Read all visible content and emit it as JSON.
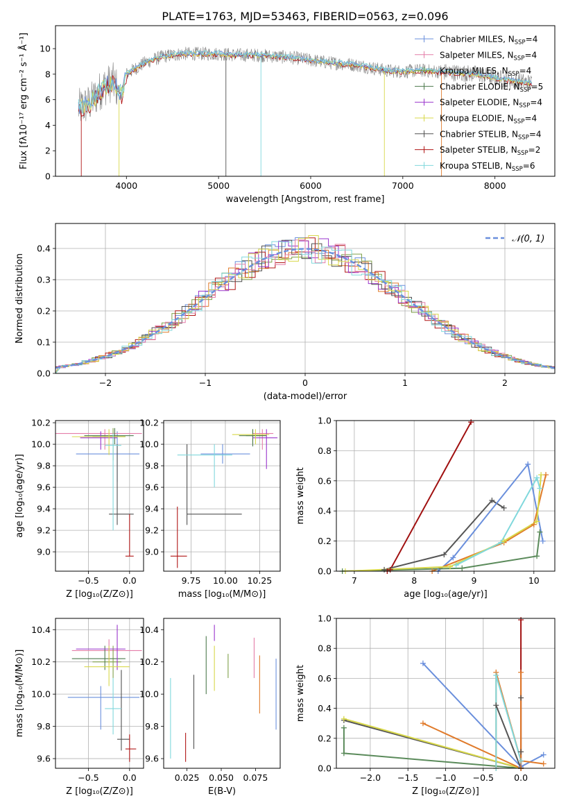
{
  "figure_title": "PLATE=1763, MJD=53463, FIBERID=0563, z=0.096",
  "colors": {
    "chabrier_miles": "#6a8fdc",
    "salpeter_miles": "#e47da8",
    "kroupa_miles": "#7fa04a",
    "chabrier_elodie": "#4e7a4e",
    "salpeter_elodie": "#9933cc",
    "kroupa_elodie": "#d8d84a",
    "chabrier_stelib": "#505050",
    "salpeter_stelib": "#b01515",
    "kroupa_stelib": "#80d8dc",
    "mass_line_blue": "#6a8fdc",
    "mass_line_orange": "#e07a2a",
    "mass_line_green": "#5a8a5a",
    "mass_line_red": "#a01010",
    "mass_line_gray": "#555555",
    "mass_line_cyan": "#80d8dc",
    "mass_line_yellow": "#d8d84a",
    "gauss": "#6a8fdc",
    "grid": "#b0b0b0"
  },
  "chart_data": [
    {
      "type": "line",
      "id": "spectrum",
      "title": "PLATE=1763, MJD=53463, FIBERID=0563, z=0.096",
      "xlabel": "wavelength [Angstrom, rest frame]",
      "ylabel": "Flux [fλ10⁻¹⁷ erg cm⁻² s⁻¹ Å⁻¹]",
      "xlim": [
        3230,
        8650
      ],
      "ylim": [
        0,
        11.8
      ],
      "xticks": [
        4000,
        5000,
        6000,
        7000,
        8000
      ],
      "yticks": [
        0,
        2,
        4,
        6,
        8,
        10
      ],
      "grid": false,
      "legend_position": "right",
      "legend": [
        {
          "label": "Chabrier MILES, N",
          "sub": "SSP",
          "suffix": "=4"
        },
        {
          "label": "Salpeter MILES, N",
          "sub": "SSP",
          "suffix": "=4"
        },
        {
          "label": "Kroupa MILES, N",
          "sub": "SSP",
          "suffix": "=4"
        },
        {
          "label": "Chabrier ELODIE, N",
          "sub": "SSP",
          "suffix": "=5"
        },
        {
          "label": "Salpeter ELODIE, N",
          "sub": "SSP",
          "suffix": "=4"
        },
        {
          "label": "Kroupa ELODIE, N",
          "sub": "SSP",
          "suffix": "=4"
        },
        {
          "label": "Chabrier STELIB, N",
          "sub": "SSP",
          "suffix": "=4"
        },
        {
          "label": "Salpeter STELIB, N",
          "sub": "SSP",
          "suffix": "=2"
        },
        {
          "label": "Kroupa STELIB, N",
          "sub": "SSP",
          "suffix": "=6"
        }
      ],
      "continuum": {
        "x": [
          3480,
          3600,
          3750,
          3850,
          3950,
          4000,
          4200,
          4400,
          4600,
          4800,
          5000,
          5200,
          5400,
          5600,
          5800,
          6000,
          6200,
          6400,
          6600,
          6800,
          7000,
          7200,
          7400,
          7600,
          7800,
          8000,
          8200,
          8400
        ],
        "y": [
          5.3,
          5.7,
          7.0,
          7.4,
          6.4,
          8.0,
          8.9,
          9.4,
          9.6,
          9.6,
          9.6,
          9.5,
          9.5,
          9.4,
          9.3,
          9.1,
          8.9,
          8.8,
          8.6,
          8.3,
          8.2,
          8.3,
          8.2,
          8.1,
          8.0,
          7.7,
          7.5,
          7.3
        ]
      }
    },
    {
      "type": "histogram",
      "id": "residuals",
      "xlabel": "(data-model)/error",
      "ylabel": "Normed distribution",
      "xlim": [
        -2.5,
        2.5
      ],
      "ylim": [
        0,
        0.48
      ],
      "xticks": [
        -2,
        -1,
        0,
        1,
        2
      ],
      "yticks": [
        0.0,
        0.1,
        0.2,
        0.3,
        0.4
      ],
      "grid": true,
      "legend": "𝒩(0, 1)",
      "legend_position": "top-right"
    },
    {
      "type": "scatter",
      "id": "age_vs_Z",
      "xlabel": "Z [log₁₀(Z/Z⊙)]",
      "ylabel": "age  [log₁₀(age/yr)]",
      "xlim": [
        -0.9,
        0.17
      ],
      "ylim": [
        8.82,
        10.22
      ],
      "xticks": [
        -0.5,
        0.0
      ],
      "yticks": [
        9.0,
        9.2,
        9.4,
        9.6,
        9.8,
        10.0,
        10.2
      ],
      "grid": true,
      "points": [
        {
          "s": "chabrier_miles",
          "x": -0.15,
          "y": 9.91,
          "ex": [
            -0.65,
            0.12
          ],
          "ey": [
            9.65,
            10.12
          ]
        },
        {
          "s": "salpeter_miles",
          "x": -0.3,
          "y": 10.1,
          "ex": [
            -0.9,
            0.15
          ],
          "ey": [
            9.95,
            10.14
          ]
        },
        {
          "s": "kroupa_miles",
          "x": -0.2,
          "y": 10.07,
          "ex": [
            -0.45,
            -0.05
          ],
          "ey": [
            9.85,
            10.15
          ]
        },
        {
          "s": "chabrier_elodie",
          "x": -0.18,
          "y": 10.08,
          "ex": [
            -0.55,
            0.05
          ],
          "ey": [
            10.0,
            10.15
          ]
        },
        {
          "s": "salpeter_elodie",
          "x": -0.35,
          "y": 10.06,
          "ex": [
            -0.6,
            -0.15
          ],
          "ey": [
            9.95,
            10.12
          ]
        },
        {
          "s": "kroupa_elodie",
          "x": -0.25,
          "y": 10.07,
          "ex": [
            -0.7,
            -0.05
          ],
          "ey": [
            9.9,
            10.14
          ]
        },
        {
          "s": "chabrier_stelib",
          "x": -0.15,
          "y": 9.35,
          "ex": [
            -0.25,
            0.05
          ],
          "ey": [
            9.25,
            10.0
          ]
        },
        {
          "s": "salpeter_stelib",
          "x": 0.0,
          "y": 8.96,
          "ex": [
            -0.05,
            0.05
          ],
          "ey": [
            8.96,
            9.35
          ]
        },
        {
          "s": "kroupa_stelib",
          "x": -0.2,
          "y": 9.99,
          "ex": [
            -0.3,
            -0.1
          ],
          "ey": [
            9.2,
            10.1
          ]
        }
      ]
    },
    {
      "type": "scatter",
      "id": "age_vs_mass",
      "xlabel": "mass [log₁₀(M/M⊙)]",
      "xlim": [
        9.55,
        10.4
      ],
      "ylim": [
        8.82,
        10.22
      ],
      "xticks": [
        9.75,
        10.0,
        10.25
      ],
      "xticklabels": [
        "9.75",
        "10.00",
        "10.25"
      ],
      "yticks": [
        9.0,
        9.2,
        9.4,
        9.6,
        9.8,
        10.0,
        10.2
      ],
      "grid": true,
      "points": [
        {
          "s": "chabrier_miles",
          "x": 9.98,
          "y": 9.91,
          "ex": [
            9.82,
            10.18
          ],
          "ey": [
            9.82,
            10.0
          ]
        },
        {
          "s": "salpeter_miles",
          "x": 10.27,
          "y": 10.1,
          "ex": [
            10.2,
            10.35
          ],
          "ey": [
            9.95,
            10.14
          ]
        },
        {
          "s": "kroupa_miles",
          "x": 10.2,
          "y": 10.08,
          "ex": [
            10.15,
            10.3
          ],
          "ey": [
            10.0,
            10.14
          ]
        },
        {
          "s": "chabrier_elodie",
          "x": 10.2,
          "y": 10.08,
          "ex": [
            10.1,
            10.3
          ],
          "ey": [
            9.98,
            10.14
          ]
        },
        {
          "s": "salpeter_elodie",
          "x": 10.3,
          "y": 10.06,
          "ex": [
            10.2,
            10.38
          ],
          "ey": [
            9.77,
            10.14
          ]
        },
        {
          "s": "kroupa_elodie",
          "x": 10.22,
          "y": 10.09,
          "ex": [
            10.05,
            10.32
          ],
          "ey": [
            10.0,
            10.14
          ]
        },
        {
          "s": "chabrier_stelib",
          "x": 9.72,
          "y": 9.35,
          "ex": [
            9.72,
            10.12
          ],
          "ey": [
            9.25,
            10.0
          ]
        },
        {
          "s": "salpeter_stelib",
          "x": 9.65,
          "y": 8.96,
          "ex": [
            9.6,
            9.72
          ],
          "ey": [
            8.85,
            9.42
          ]
        },
        {
          "s": "kroupa_stelib",
          "x": 9.92,
          "y": 9.9,
          "ex": [
            9.65,
            10.05
          ],
          "ey": [
            9.6,
            10.0
          ]
        }
      ]
    },
    {
      "type": "line",
      "id": "mass_weight_vs_age",
      "xlabel": "age  [log₁₀(age/yr)]",
      "ylabel": "mass weight",
      "xlim": [
        6.7,
        10.35
      ],
      "ylim": [
        0,
        1
      ],
      "xticks": [
        7,
        8,
        9,
        10
      ],
      "yticks": [
        0.0,
        0.2,
        0.4,
        0.6,
        0.8,
        1.0
      ],
      "grid": true,
      "series": [
        {
          "c": "mass_line_red",
          "x": [
            7.55,
            7.6,
            8.95
          ],
          "y": [
            0.0,
            0.01,
            0.99
          ]
        },
        {
          "c": "mass_line_gray",
          "x": [
            7.5,
            8.5,
            9.3,
            9.5
          ],
          "y": [
            0.01,
            0.11,
            0.47,
            0.42
          ]
        },
        {
          "c": "mass_line_blue",
          "x": [
            8.4,
            8.65,
            9.9,
            10.15
          ],
          "y": [
            0.0,
            0.09,
            0.71,
            0.2
          ]
        },
        {
          "c": "mass_line_orange",
          "x": [
            8.3,
            9.5,
            10.0,
            10.2
          ],
          "y": [
            0.0,
            0.19,
            0.31,
            0.64
          ]
        },
        {
          "c": "mass_line_green",
          "x": [
            6.8,
            8.8,
            10.05,
            10.1
          ],
          "y": [
            0.0,
            0.02,
            0.1,
            0.26
          ]
        },
        {
          "c": "mass_line_yellow",
          "x": [
            6.85,
            8.6,
            9.5,
            10.05,
            10.12
          ],
          "y": [
            0.0,
            0.03,
            0.2,
            0.33,
            0.64
          ]
        },
        {
          "c": "mass_line_cyan",
          "x": [
            8.7,
            9.45,
            10.05,
            10.1
          ],
          "y": [
            0.04,
            0.19,
            0.62,
            0.55
          ]
        }
      ]
    },
    {
      "type": "scatter",
      "id": "mass_vs_Z",
      "xlabel": "Z [log₁₀(Z/Z⊙)]",
      "ylabel": "mass [log₁₀(M/M⊙)]",
      "xlim": [
        -0.9,
        0.17
      ],
      "ylim": [
        9.54,
        10.47
      ],
      "xticks": [
        -0.5,
        0.0
      ],
      "yticks": [
        9.6,
        9.8,
        10.0,
        10.2,
        10.4
      ],
      "grid": true,
      "points": [
        {
          "s": "chabrier_miles",
          "x": -0.35,
          "y": 9.98,
          "ex": [
            -0.75,
            0.12
          ],
          "ey": [
            9.78,
            10.05
          ]
        },
        {
          "s": "salpeter_miles",
          "x": -0.25,
          "y": 10.27,
          "ex": [
            -0.7,
            0.15
          ],
          "ey": [
            10.18,
            10.34
          ]
        },
        {
          "s": "kroupa_miles",
          "x": -0.2,
          "y": 10.2,
          "ex": [
            -0.45,
            -0.1
          ],
          "ey": [
            10.1,
            10.3
          ]
        },
        {
          "s": "chabrier_elodie",
          "x": -0.3,
          "y": 10.22,
          "ex": [
            -0.7,
            -0.05
          ],
          "ey": [
            10.15,
            10.3
          ]
        },
        {
          "s": "salpeter_elodie",
          "x": -0.15,
          "y": 10.28,
          "ex": [
            -0.65,
            -0.05
          ],
          "ey": [
            10.15,
            10.43
          ]
        },
        {
          "s": "kroupa_elodie",
          "x": -0.25,
          "y": 10.17,
          "ex": [
            -0.55,
            0.0
          ],
          "ey": [
            10.05,
            10.3
          ]
        },
        {
          "s": "chabrier_stelib",
          "x": -0.1,
          "y": 9.72,
          "ex": [
            -0.15,
            0.0
          ],
          "ey": [
            9.65,
            10.15
          ]
        },
        {
          "s": "salpeter_stelib",
          "x": 0.0,
          "y": 9.66,
          "ex": [
            -0.05,
            0.08
          ],
          "ey": [
            9.58,
            9.75
          ]
        },
        {
          "s": "kroupa_stelib",
          "x": -0.2,
          "y": 9.91,
          "ex": [
            -0.3,
            -0.1
          ],
          "ey": [
            9.75,
            10.1
          ]
        }
      ]
    },
    {
      "type": "scatter",
      "id": "mass_vs_EBV",
      "xlabel": "E(B-V)",
      "xlim": [
        0.008,
        0.093
      ],
      "ylim": [
        9.54,
        10.47
      ],
      "xticks": [
        0.025,
        0.05,
        0.075
      ],
      "xticklabels": [
        "0.025",
        "0.050",
        "0.075"
      ],
      "yticks": [
        9.6,
        9.8,
        10.0,
        10.2,
        10.4
      ],
      "grid": false,
      "points": [
        {
          "s": "kroupa_stelib",
          "x": 0.013,
          "ey": [
            9.6,
            10.1
          ]
        },
        {
          "s": "salpeter_stelib",
          "x": 0.024,
          "ey": [
            9.58,
            9.76
          ]
        },
        {
          "s": "chabrier_stelib",
          "x": 0.03,
          "ey": [
            9.66,
            10.12
          ]
        },
        {
          "s": "chabrier_elodie",
          "x": 0.039,
          "ey": [
            10.0,
            10.36
          ]
        },
        {
          "s": "salpeter_elodie",
          "x": 0.045,
          "ey": [
            10.33,
            10.43
          ]
        },
        {
          "s": "kroupa_elodie",
          "x": 0.045,
          "ey": [
            10.02,
            10.3
          ]
        },
        {
          "s": "kroupa_miles",
          "x": 0.055,
          "ey": [
            10.1,
            10.25
          ]
        },
        {
          "s": "salpeter_miles",
          "x": 0.074,
          "ey": [
            10.1,
            10.35
          ]
        },
        {
          "s": "mass_line_orange",
          "x": 0.078,
          "ey": [
            9.88,
            10.24
          ]
        },
        {
          "s": "chabrier_miles",
          "x": 0.09,
          "ey": [
            9.78,
            10.22
          ]
        }
      ]
    },
    {
      "type": "line",
      "id": "mass_weight_vs_Z",
      "xlabel": "Z [log₁₀(Z/Z⊙)]",
      "ylabel": "mass weight",
      "xlim": [
        -2.45,
        0.45
      ],
      "ylim": [
        0,
        1
      ],
      "xticks": [
        -2.0,
        -1.5,
        -1.0,
        -0.5,
        0.0
      ],
      "xticklabels": [
        "−2.0",
        "−1.5",
        "−1.0",
        "−0.5",
        "0.0"
      ],
      "yticks": [
        0.0,
        0.2,
        0.4,
        0.6,
        0.8,
        1.0
      ],
      "grid": true,
      "series": [
        {
          "c": "mass_line_green",
          "x": [
            -2.35,
            -2.35,
            0.0
          ],
          "y": [
            0.27,
            0.1,
            0.0
          ]
        },
        {
          "c": "mass_line_gray",
          "x": [
            -2.35,
            0.0
          ],
          "y": [
            0.32,
            0.0
          ]
        },
        {
          "c": "mass_line_yellow",
          "x": [
            -2.35,
            0.0
          ],
          "y": [
            0.33,
            0.0
          ]
        },
        {
          "c": "mass_line_orange",
          "x": [
            -1.3,
            0.0
          ],
          "y": [
            0.3,
            0.0
          ]
        },
        {
          "c": "mass_line_blue",
          "x": [
            -1.3,
            0.0,
            0.3
          ],
          "y": [
            0.7,
            0.01,
            0.09
          ]
        },
        {
          "c": "mass_line_orange",
          "x": [
            -0.33,
            -0.33,
            0.0,
            0.3
          ],
          "y": [
            0.0,
            0.64,
            0.05,
            0.03
          ]
        },
        {
          "c": "mass_line_cyan",
          "x": [
            -0.33,
            -0.33,
            0.0,
            0.0
          ],
          "y": [
            0.0,
            0.62,
            0.05,
            0.0
          ]
        },
        {
          "c": "mass_line_gray",
          "x": [
            -0.33,
            0.0,
            0.0,
            0.0
          ],
          "y": [
            0.42,
            0.0,
            0.11,
            0.47
          ]
        },
        {
          "c": "mass_line_red",
          "x": [
            0.0,
            0.0
          ],
          "y": [
            0.0,
            0.99
          ]
        },
        {
          "c": "mass_line_orange",
          "x": [
            0.0,
            0.0
          ],
          "y": [
            0.0,
            0.64
          ]
        }
      ]
    }
  ]
}
